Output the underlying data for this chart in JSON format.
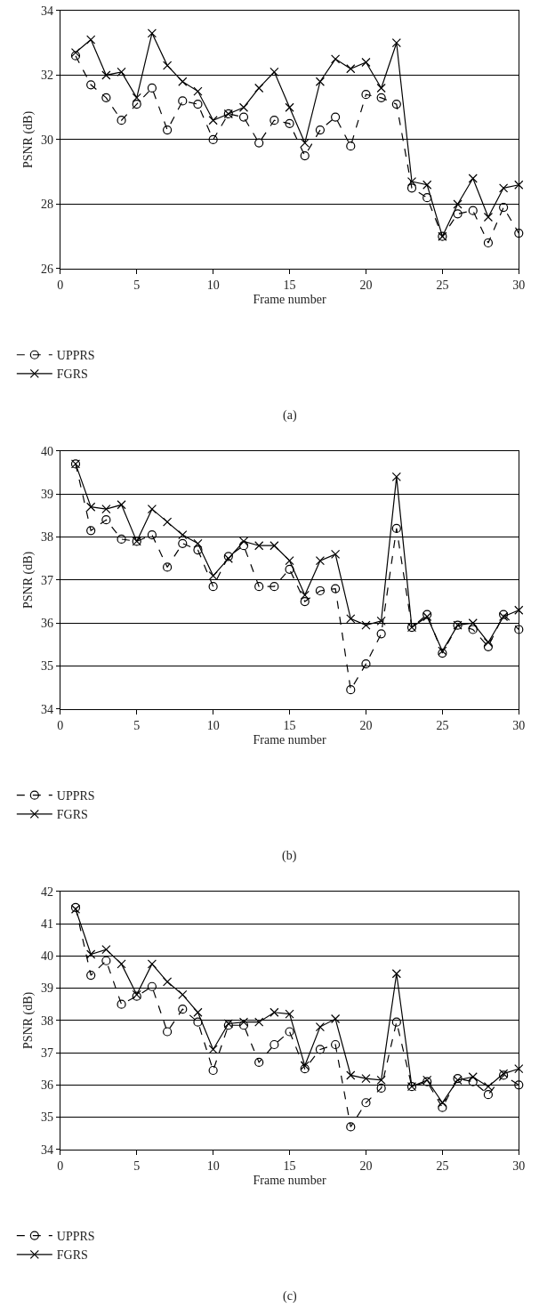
{
  "chart_data": [
    {
      "type": "line",
      "xlabel": "Frame number",
      "ylabel": "PSNR (dB)",
      "annotations": [
        "(a)"
      ],
      "x": [
        1,
        2,
        3,
        4,
        5,
        6,
        7,
        8,
        9,
        10,
        11,
        12,
        13,
        14,
        15,
        16,
        17,
        18,
        19,
        20,
        21,
        22,
        23,
        24,
        25,
        26,
        27,
        28,
        29,
        30
      ],
      "xlim": [
        0,
        30
      ],
      "xticks": [
        0,
        5,
        10,
        15,
        20,
        25,
        30
      ],
      "ylim": [
        26,
        34
      ],
      "yticks": [
        26,
        28,
        30,
        32,
        34
      ],
      "grid": "y",
      "legend": "bottom left",
      "series": [
        {
          "name": "UPPRS",
          "color": "#000000",
          "marker": "circle",
          "line_style": "dashed",
          "values": [
            32.6,
            31.7,
            31.3,
            30.6,
            31.1,
            31.6,
            30.3,
            31.2,
            31.1,
            30.0,
            30.8,
            30.7,
            29.9,
            30.6,
            30.5,
            29.5,
            30.3,
            30.7,
            29.8,
            31.4,
            31.3,
            31.1,
            28.5,
            28.2,
            27.0,
            27.7,
            27.8,
            26.8,
            27.9,
            27.1
          ]
        },
        {
          "name": "FGRS",
          "color": "#000000",
          "marker": "cross",
          "line_style": "solid",
          "values": [
            32.7,
            33.1,
            32.0,
            32.1,
            31.3,
            33.3,
            32.3,
            31.8,
            31.5,
            30.6,
            30.8,
            31.0,
            31.6,
            32.1,
            31.0,
            29.9,
            31.8,
            32.5,
            32.2,
            32.4,
            31.6,
            33.0,
            28.7,
            28.6,
            27.0,
            28.0,
            28.8,
            27.6,
            28.5,
            28.6
          ]
        }
      ]
    },
    {
      "type": "line",
      "xlabel": "Frame number",
      "ylabel": "PSNR (dB)",
      "annotations": [
        "(b)"
      ],
      "x": [
        1,
        2,
        3,
        4,
        5,
        6,
        7,
        8,
        9,
        10,
        11,
        12,
        13,
        14,
        15,
        16,
        17,
        18,
        19,
        20,
        21,
        22,
        23,
        24,
        25,
        26,
        27,
        28,
        29,
        30
      ],
      "xlim": [
        0,
        30
      ],
      "xticks": [
        0,
        5,
        10,
        15,
        20,
        25,
        30
      ],
      "ylim": [
        34,
        40
      ],
      "yticks": [
        34,
        35,
        36,
        37,
        38,
        39,
        40
      ],
      "grid": "y",
      "legend": "bottom left",
      "series": [
        {
          "name": "UPPRS",
          "color": "#000000",
          "marker": "circle",
          "line_style": "dashed",
          "values": [
            39.7,
            38.15,
            38.4,
            37.95,
            37.9,
            38.05,
            37.3,
            37.85,
            37.7,
            36.85,
            37.55,
            37.8,
            36.85,
            36.85,
            37.25,
            36.5,
            36.75,
            36.8,
            34.45,
            35.05,
            35.75,
            38.2,
            35.9,
            36.2,
            35.3,
            35.95,
            35.85,
            35.45,
            36.2,
            35.85
          ]
        },
        {
          "name": "FGRS",
          "color": "#000000",
          "marker": "cross",
          "line_style": "solid",
          "values": [
            39.7,
            38.7,
            38.65,
            38.75,
            37.9,
            38.65,
            38.35,
            38.05,
            37.85,
            37.1,
            37.5,
            37.9,
            37.8,
            37.8,
            37.45,
            36.65,
            37.45,
            37.6,
            36.1,
            35.95,
            36.05,
            39.4,
            35.9,
            36.15,
            35.35,
            35.95,
            36.0,
            35.55,
            36.15,
            36.3
          ]
        }
      ]
    },
    {
      "type": "line",
      "xlabel": "Frame number",
      "ylabel": "PSNR (dB)",
      "annotations": [
        "(c)"
      ],
      "x": [
        1,
        2,
        3,
        4,
        5,
        6,
        7,
        8,
        9,
        10,
        11,
        12,
        13,
        14,
        15,
        16,
        17,
        18,
        19,
        20,
        21,
        22,
        23,
        24,
        25,
        26,
        27,
        28,
        29,
        30
      ],
      "xlim": [
        0,
        30
      ],
      "xticks": [
        0,
        5,
        10,
        15,
        20,
        25,
        30
      ],
      "ylim": [
        34,
        42
      ],
      "yticks": [
        34,
        35,
        36,
        37,
        38,
        39,
        40,
        41,
        42
      ],
      "grid": "y",
      "legend": "bottom left",
      "series": [
        {
          "name": "UPPRS",
          "color": "#000000",
          "marker": "circle",
          "line_style": "dashed",
          "values": [
            41.5,
            39.4,
            39.85,
            38.5,
            38.75,
            39.05,
            37.65,
            38.35,
            37.95,
            36.45,
            37.85,
            37.85,
            36.7,
            37.25,
            37.65,
            36.5,
            37.1,
            37.25,
            34.7,
            35.45,
            35.9,
            37.95,
            35.95,
            36.1,
            35.3,
            36.2,
            36.1,
            35.7,
            36.3,
            36.0
          ]
        },
        {
          "name": "FGRS",
          "color": "#000000",
          "marker": "cross",
          "line_style": "solid",
          "values": [
            41.45,
            40.05,
            40.2,
            39.75,
            38.8,
            39.75,
            39.2,
            38.8,
            38.25,
            37.1,
            37.9,
            37.95,
            37.95,
            38.25,
            38.2,
            36.6,
            37.8,
            38.05,
            36.3,
            36.2,
            36.15,
            39.45,
            35.95,
            36.15,
            35.45,
            36.15,
            36.25,
            35.95,
            36.35,
            36.5
          ]
        }
      ]
    }
  ]
}
